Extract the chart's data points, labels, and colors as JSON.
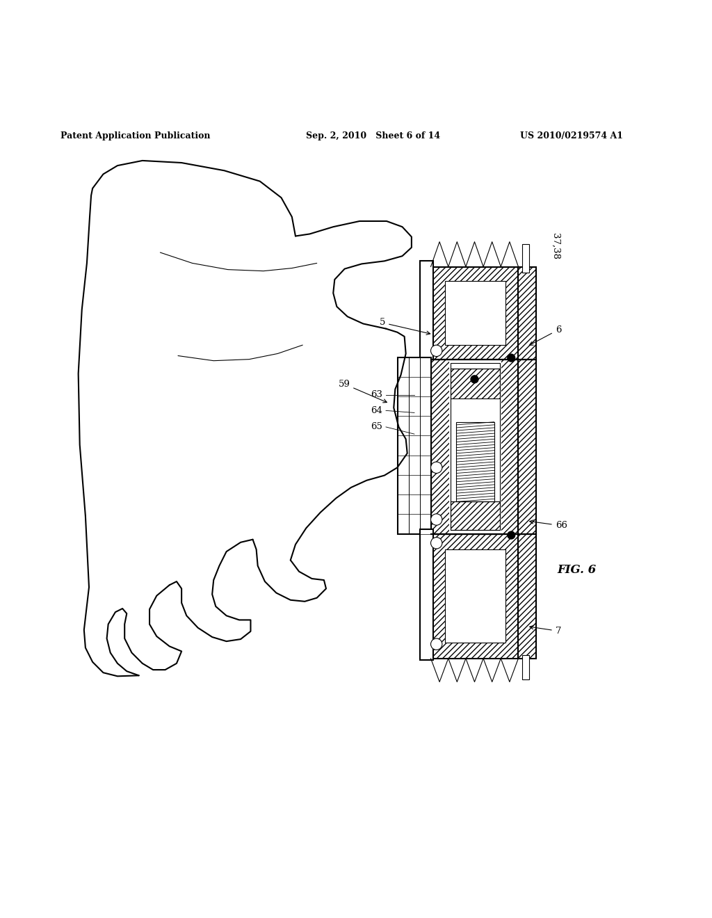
{
  "bg_color": "#ffffff",
  "line_color": "#000000",
  "header_left": "Patent Application Publication",
  "header_mid": "Sep. 2, 2010   Sheet 6 of 14",
  "header_right": "US 2010/0219574 A1",
  "fig_label": "FIG. 6"
}
